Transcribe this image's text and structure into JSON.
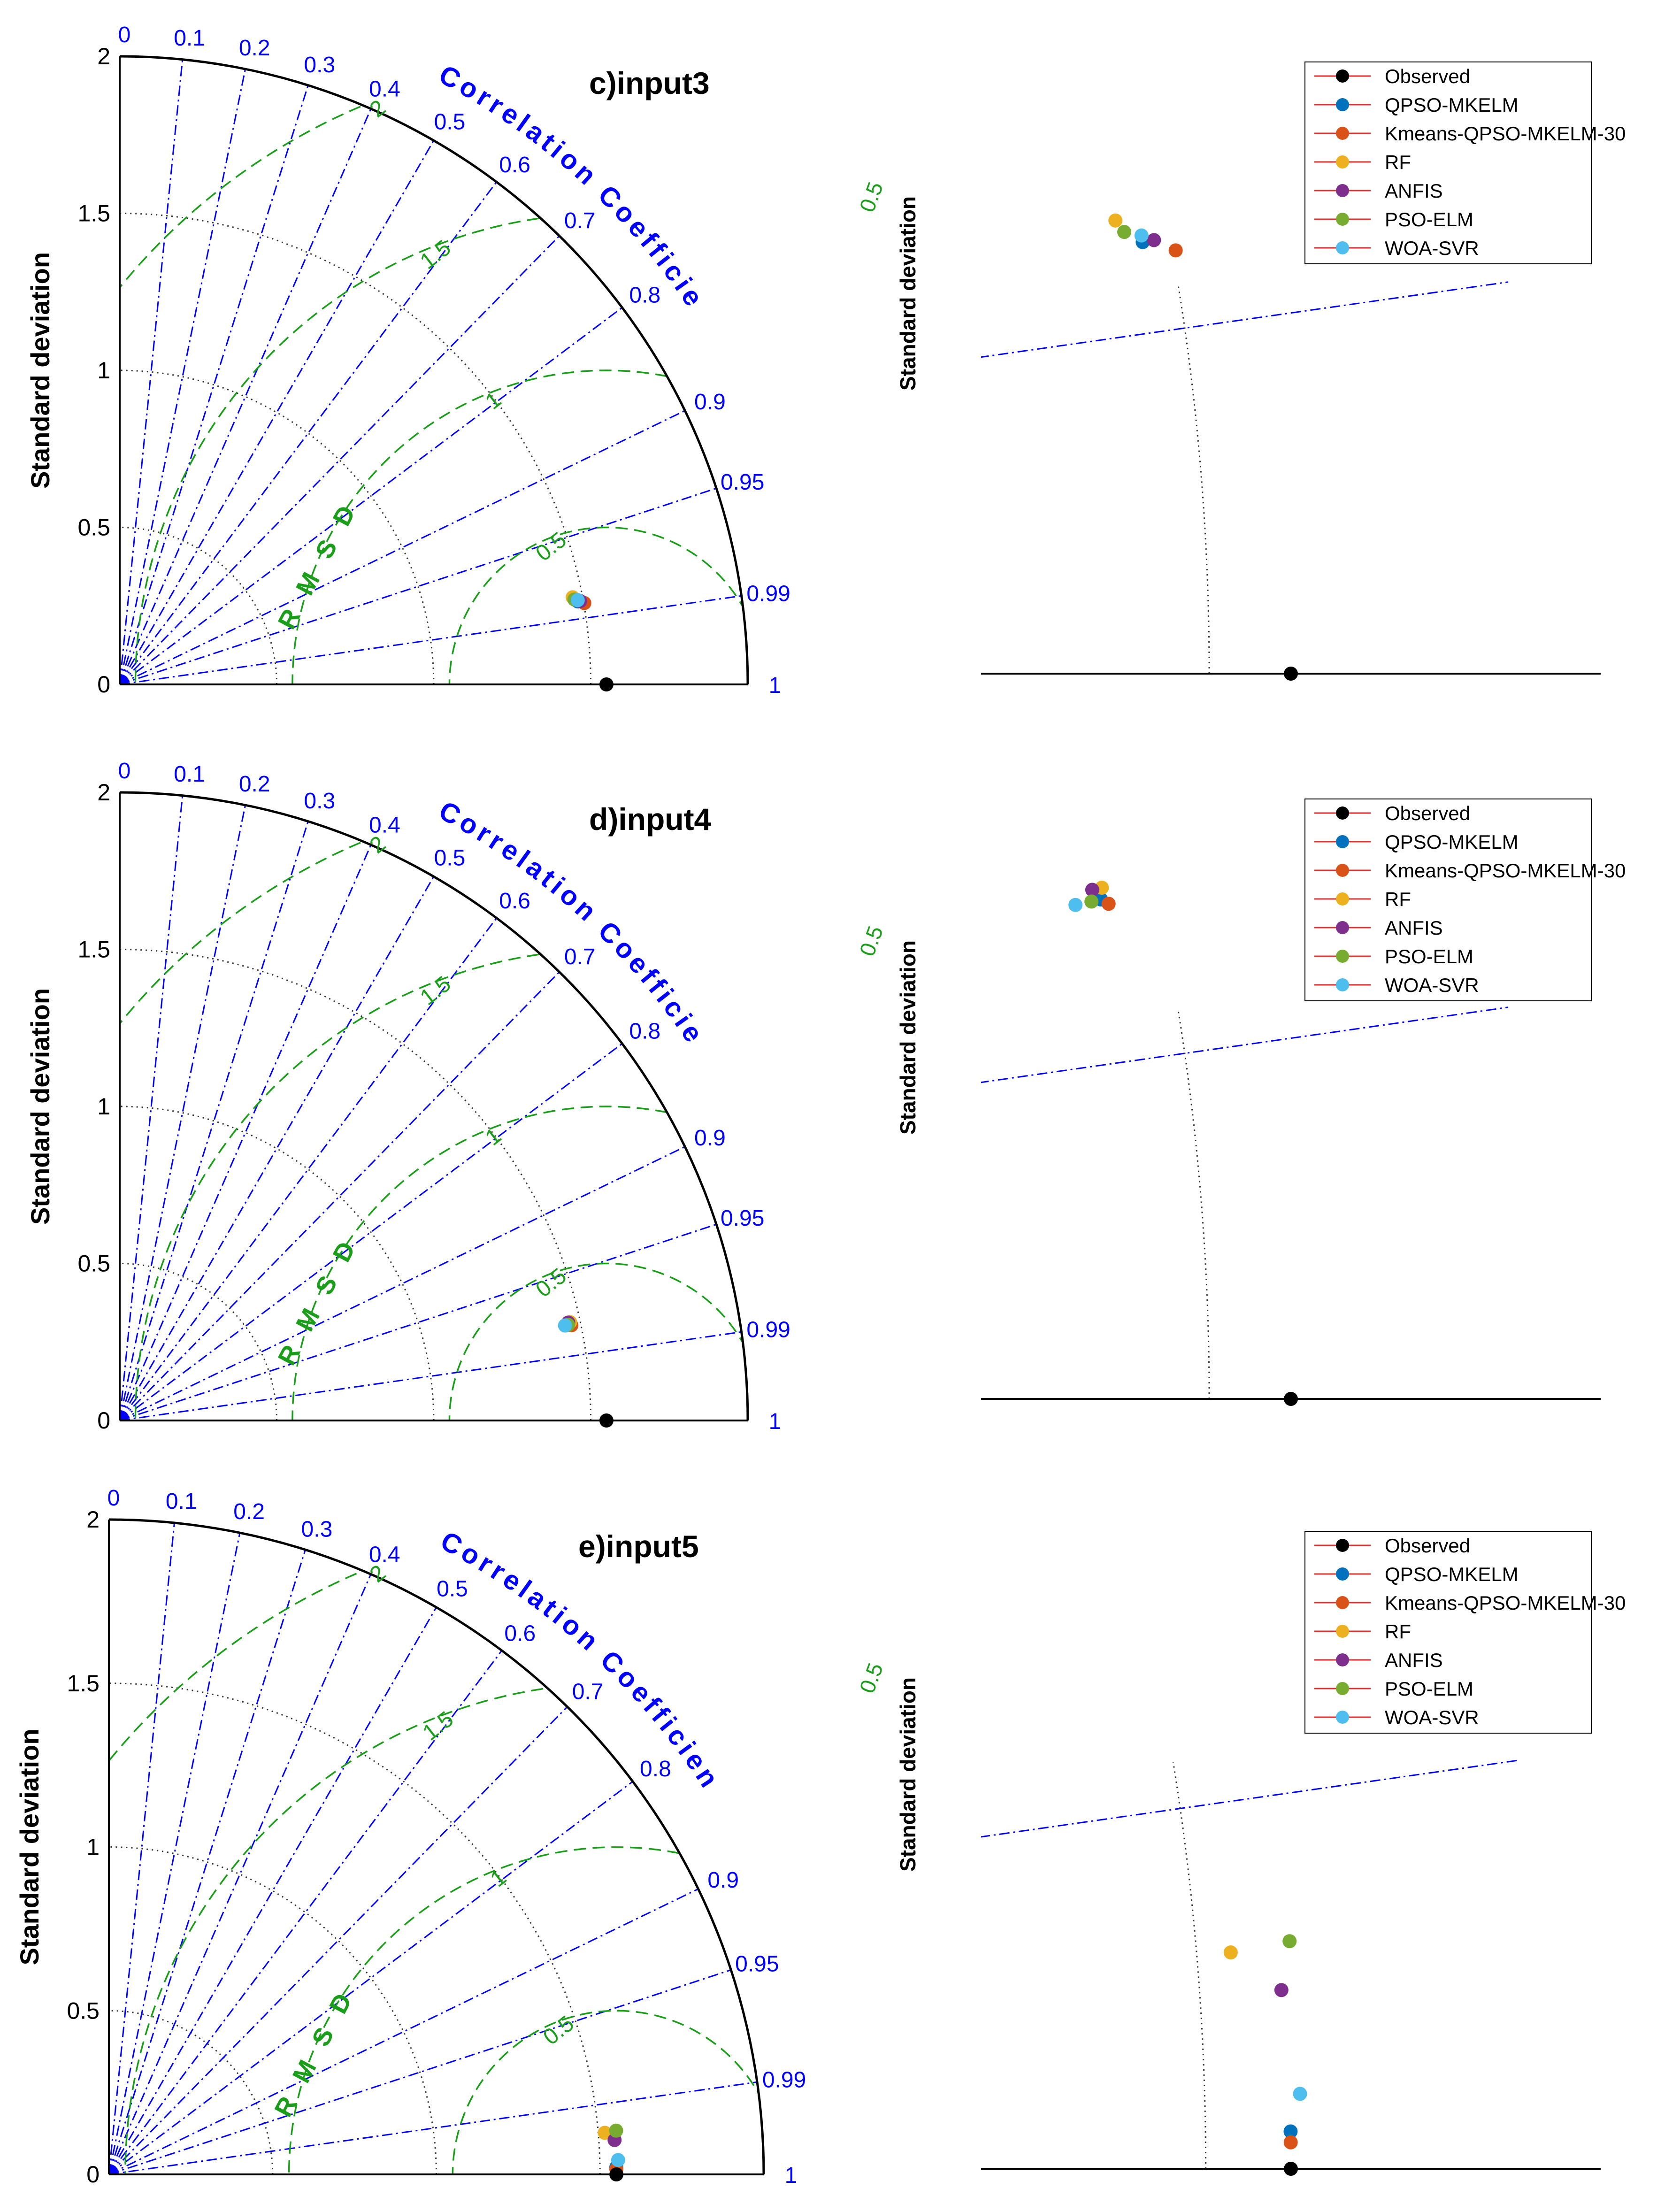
{
  "chart_data": [
    {
      "type": "taylor-diagram",
      "title": "c)input3",
      "ylabel": "Standard deviation",
      "corr_axis_label": "Correlation Coefficient",
      "rmsd_axis_label": "R M S D",
      "std_ticks": [
        "0",
        "0.5",
        "1",
        "1.5",
        "2"
      ],
      "corr_ticks": [
        "0",
        "0.1",
        "0.2",
        "0.3",
        "0.4",
        "0.5",
        "0.6",
        "0.7",
        "0.8",
        "0.9",
        "0.95",
        "0.99",
        "1"
      ],
      "rmsd_ticks": [
        "0.5",
        "1",
        "1.5",
        "2"
      ],
      "std_range": [
        0,
        2
      ],
      "observed": {
        "std": 1.55,
        "corr": 1.0
      },
      "points": [
        {
          "name": "QPSO-MKELM",
          "std": 1.483,
          "corr": 0.984
        },
        {
          "name": "Kmeans-QPSO-MKELM-30",
          "std": 1.502,
          "corr": 0.985
        },
        {
          "name": "RF",
          "std": 1.469,
          "corr": 0.982
        },
        {
          "name": "ANFIS",
          "std": 1.49,
          "corr": 0.984
        },
        {
          "name": "PSO-ELM",
          "std": 1.473,
          "corr": 0.983
        },
        {
          "name": "WOA-SVR",
          "std": 1.483,
          "corr": 0.9835
        }
      ],
      "zoom_label": "0.5",
      "zoom_ylabel": "Standard deviation"
    },
    {
      "type": "taylor-diagram",
      "title": "d)input4",
      "ylabel": "Standard deviation",
      "corr_axis_label": "Correlation Coefficient",
      "rmsd_axis_label": "R M S D",
      "std_ticks": [
        "0",
        "0.5",
        "1",
        "1.5",
        "2"
      ],
      "corr_ticks": [
        "0",
        "0.1",
        "0.2",
        "0.3",
        "0.4",
        "0.5",
        "0.6",
        "0.7",
        "0.8",
        "0.9",
        "0.95",
        "0.99",
        "1"
      ],
      "rmsd_ticks": [
        "0.5",
        "1",
        "1.5",
        "2"
      ],
      "std_range": [
        0,
        2
      ],
      "observed": {
        "std": 1.55,
        "corr": 1.0
      },
      "points": [
        {
          "name": "QPSO-MKELM",
          "std": 1.466,
          "corr": 0.978
        },
        {
          "name": "Kmeans-QPSO-MKELM-30",
          "std": 1.47,
          "corr": 0.9785
        },
        {
          "name": "RF",
          "std": 1.468,
          "corr": 0.977
        },
        {
          "name": "ANFIS",
          "std": 1.462,
          "corr": 0.977
        },
        {
          "name": "PSO-ELM",
          "std": 1.46,
          "corr": 0.978
        },
        {
          "name": "WOA-SVR",
          "std": 1.45,
          "corr": 0.978
        }
      ],
      "zoom_label": "0.5",
      "zoom_ylabel": "Standard deviation"
    },
    {
      "type": "taylor-diagram",
      "title": "e)input5",
      "ylabel": "Standard deviation",
      "corr_axis_label": "Correlation Coefficient",
      "rmsd_axis_label": "R M S D",
      "std_ticks": [
        "0",
        "0.5",
        "1",
        "1.5",
        "2"
      ],
      "corr_ticks": [
        "0",
        "0.1",
        "0.2",
        "0.3",
        "0.4",
        "0.5",
        "0.6",
        "0.7",
        "0.8",
        "0.9",
        "0.95",
        "0.99",
        "1"
      ],
      "rmsd_ticks": [
        "0.5",
        "1",
        "1.5",
        "2"
      ],
      "std_range": [
        0,
        2
      ],
      "observed": {
        "std": 1.55,
        "corr": 1.0
      },
      "points": [
        {
          "name": "QPSO-MKELM",
          "std": 1.55,
          "corr": 0.9999
        },
        {
          "name": "Kmeans-QPSO-MKELM-30",
          "std": 1.55,
          "corr": 0.99995
        },
        {
          "name": "RF",
          "std": 1.52,
          "corr": 0.9965
        },
        {
          "name": "ANFIS",
          "std": 1.548,
          "corr": 0.9977
        },
        {
          "name": "PSO-ELM",
          "std": 1.555,
          "corr": 0.9963
        },
        {
          "name": "WOA-SVR",
          "std": 1.556,
          "corr": 0.9996
        }
      ],
      "zoom_label": "0.5",
      "zoom_ylabel": "Standard deviation"
    }
  ],
  "legend": [
    {
      "label": "Observed",
      "color": "#000000"
    },
    {
      "label": "QPSO-MKELM",
      "color": "#0072BD"
    },
    {
      "label": "Kmeans-QPSO-MKELM-30",
      "color": "#D95319"
    },
    {
      "label": "RF",
      "color": "#EDB120"
    },
    {
      "label": "ANFIS",
      "color": "#7E2F8E"
    },
    {
      "label": "PSO-ELM",
      "color": "#77AC30"
    },
    {
      "label": "WOA-SVR",
      "color": "#4DBEEE"
    }
  ],
  "colors": {
    "axis": "#000000",
    "correlation": "#0000FF",
    "rmsd": "#1A9E1A",
    "std_grid": "#333333",
    "legend_line": "#E03030"
  }
}
